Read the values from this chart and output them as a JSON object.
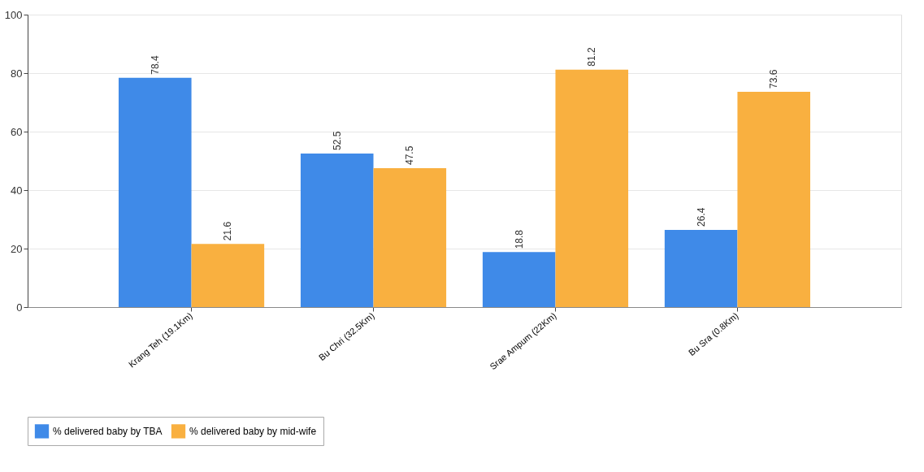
{
  "chart_data": {
    "type": "bar",
    "categories": [
      "Krang Teh (19.1Km)",
      "Bu Chri (32.5Km)",
      "Srae Ampum (22Km)",
      "Bu Sra (0.8Km)"
    ],
    "series": [
      {
        "name": "% delivered baby by TBA",
        "color": "#3f8ae8",
        "values": [
          78.4,
          52.5,
          18.8,
          26.4
        ]
      },
      {
        "name": "% delivered baby by mid-wife",
        "color": "#f9b040",
        "values": [
          21.6,
          47.5,
          81.2,
          73.6
        ]
      }
    ],
    "ylim": [
      0,
      100
    ],
    "yticks": [
      0,
      20,
      40,
      60,
      80,
      100
    ],
    "grid": "y",
    "legend": "bottom",
    "data_labels": true
  }
}
